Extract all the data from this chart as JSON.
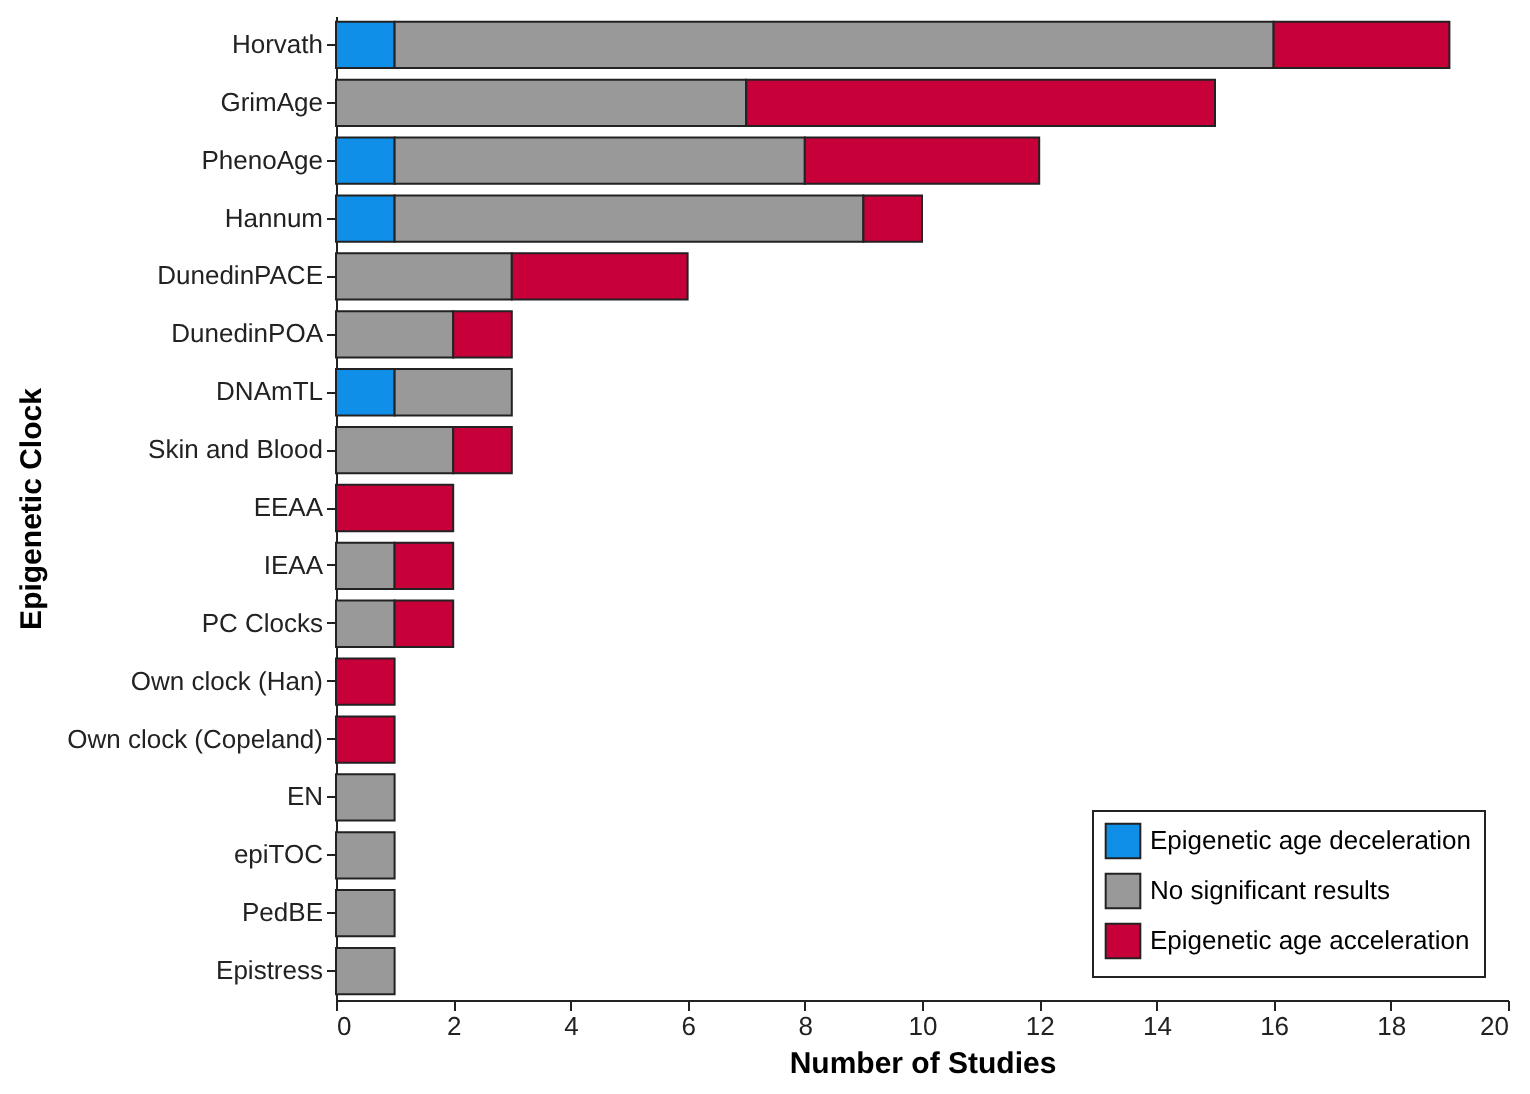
{
  "chart_data": {
    "type": "bar",
    "orientation": "horizontal",
    "stacked": true,
    "xlabel": "Number of Studies",
    "ylabel": "Epigenetic Clock",
    "categories": [
      "Horvath",
      "GrimAge",
      "PhenoAge",
      "Hannum",
      "DunedinPACE",
      "DunedinPOA",
      "DNAmTL",
      "Skin and Blood",
      "EEAA",
      "IEAA",
      "PC Clocks",
      "Own clock (Han)",
      "Own clock (Copeland)",
      "EN",
      "epiTOC",
      "PedBE",
      "Epistress"
    ],
    "series": [
      {
        "name": "Epigenetic age deceleration",
        "color": "#0f8fe8",
        "values": [
          1,
          0,
          1,
          1,
          0,
          0,
          1,
          0,
          0,
          0,
          0,
          0,
          0,
          0,
          0,
          0,
          0
        ]
      },
      {
        "name": "No significant results",
        "color": "#999999",
        "values": [
          15,
          7,
          7,
          8,
          3,
          2,
          2,
          2,
          0,
          1,
          1,
          0,
          0,
          1,
          1,
          1,
          1
        ]
      },
      {
        "name": "Epigenetic age acceleration",
        "color": "#c8003a",
        "values": [
          3,
          8,
          4,
          1,
          3,
          1,
          0,
          1,
          2,
          1,
          1,
          1,
          1,
          0,
          0,
          0,
          0
        ]
      }
    ],
    "xlim": [
      0,
      20
    ],
    "xticks": [
      0,
      2,
      4,
      6,
      8,
      10,
      12,
      14,
      16,
      18,
      20
    ],
    "grid": false,
    "legend": "bottom right"
  }
}
